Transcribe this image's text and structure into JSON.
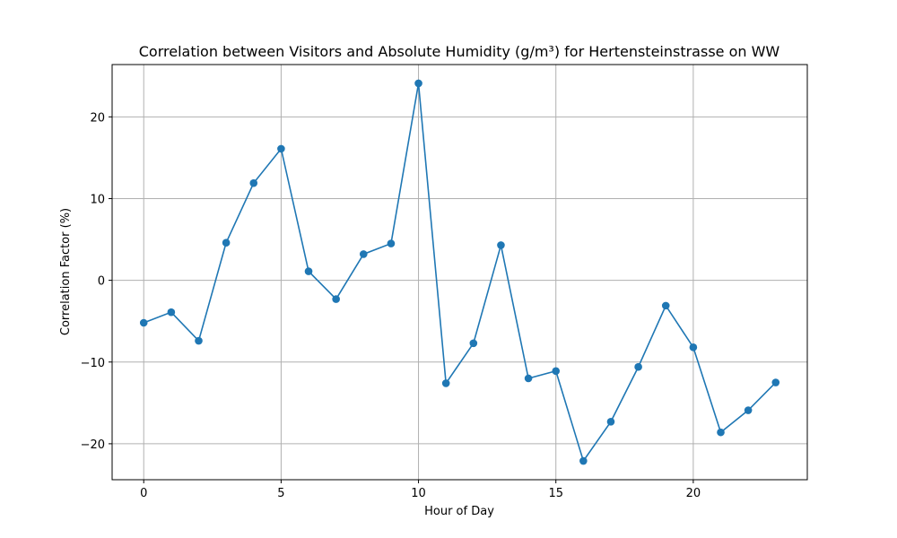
{
  "chart_data": {
    "type": "line",
    "title": "Correlation between Visitors and Absolute Humidity (g/m³) for Hertensteinstrasse on WW",
    "xlabel": "Hour of Day",
    "ylabel": "Correlation Factor (%)",
    "x": [
      0,
      1,
      2,
      3,
      4,
      5,
      6,
      7,
      8,
      9,
      10,
      11,
      12,
      13,
      14,
      15,
      16,
      17,
      18,
      19,
      20,
      21,
      22,
      23
    ],
    "series": [
      {
        "values": [
          -5.2,
          -3.9,
          -7.4,
          4.6,
          11.9,
          16.1,
          1.1,
          -2.3,
          3.2,
          4.5,
          24.1,
          -12.6,
          -7.7,
          4.3,
          -12.0,
          -11.1,
          -22.1,
          -17.3,
          -10.6,
          -3.1,
          -8.2,
          -18.6,
          -15.9,
          -12.5
        ]
      }
    ],
    "xlim": [
      -1.15,
      24.15
    ],
    "ylim": [
      -24.4,
      26.4
    ],
    "xticks": [
      0,
      5,
      10,
      15,
      20
    ],
    "yticks": [
      -20,
      -10,
      0,
      10,
      20
    ],
    "xtick_labels": [
      "0",
      "5",
      "10",
      "15",
      "20"
    ],
    "ytick_labels": [
      "−20",
      "−10",
      "0",
      "10",
      "20"
    ],
    "grid": true,
    "colors": {
      "line": "#1f77b4",
      "marker": "#1f77b4"
    }
  }
}
